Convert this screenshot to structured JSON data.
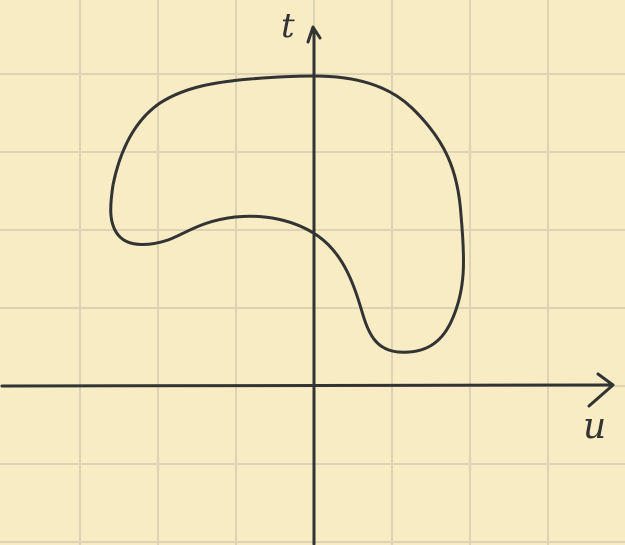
{
  "axes": {
    "vertical_label": "t",
    "horizontal_label": "u"
  },
  "colors": {
    "paper": "#f7ecc4",
    "grid": "#dcd2b4",
    "ink": "#333333"
  },
  "grid": {
    "visible": true
  }
}
